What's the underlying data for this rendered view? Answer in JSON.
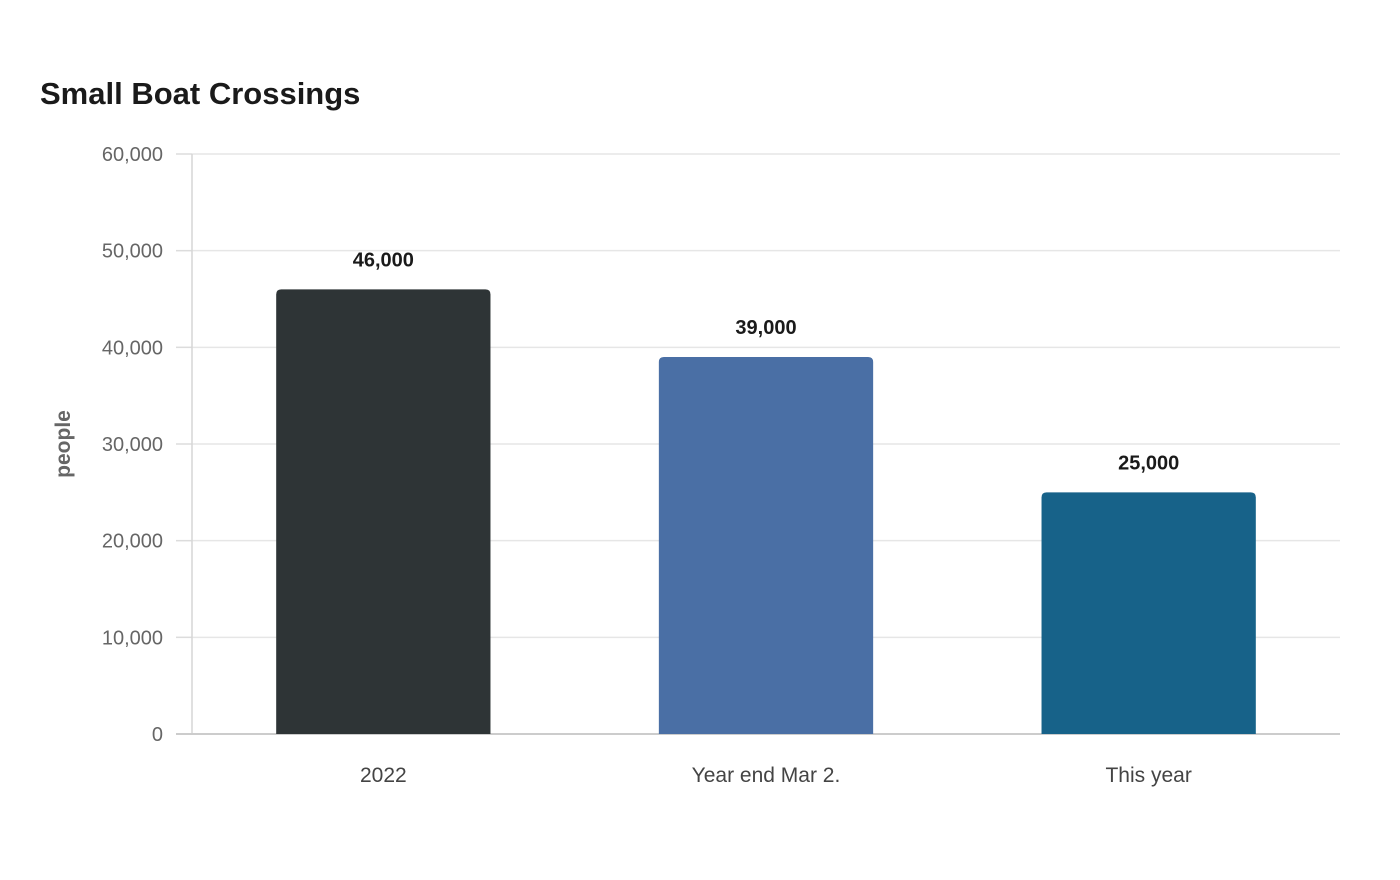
{
  "chart_data": {
    "type": "bar",
    "title": "Small Boat Crossings",
    "xlabel": "",
    "ylabel": "people",
    "categories": [
      "2022",
      "Year end Mar 2.",
      "This year"
    ],
    "values": [
      46000,
      39000,
      25000
    ],
    "value_labels": [
      "46,000",
      "39,000",
      "25,000"
    ],
    "bar_colors": [
      "#2e3436",
      "#4a6fa5",
      "#176289"
    ],
    "ylim": [
      0,
      60000
    ],
    "yticks": [
      0,
      10000,
      20000,
      30000,
      40000,
      50000,
      60000
    ],
    "ytick_labels": [
      "0",
      "10,000",
      "20,000",
      "30,000",
      "40,000",
      "50,000",
      "60,000"
    ],
    "grid": true,
    "legend": "none"
  }
}
